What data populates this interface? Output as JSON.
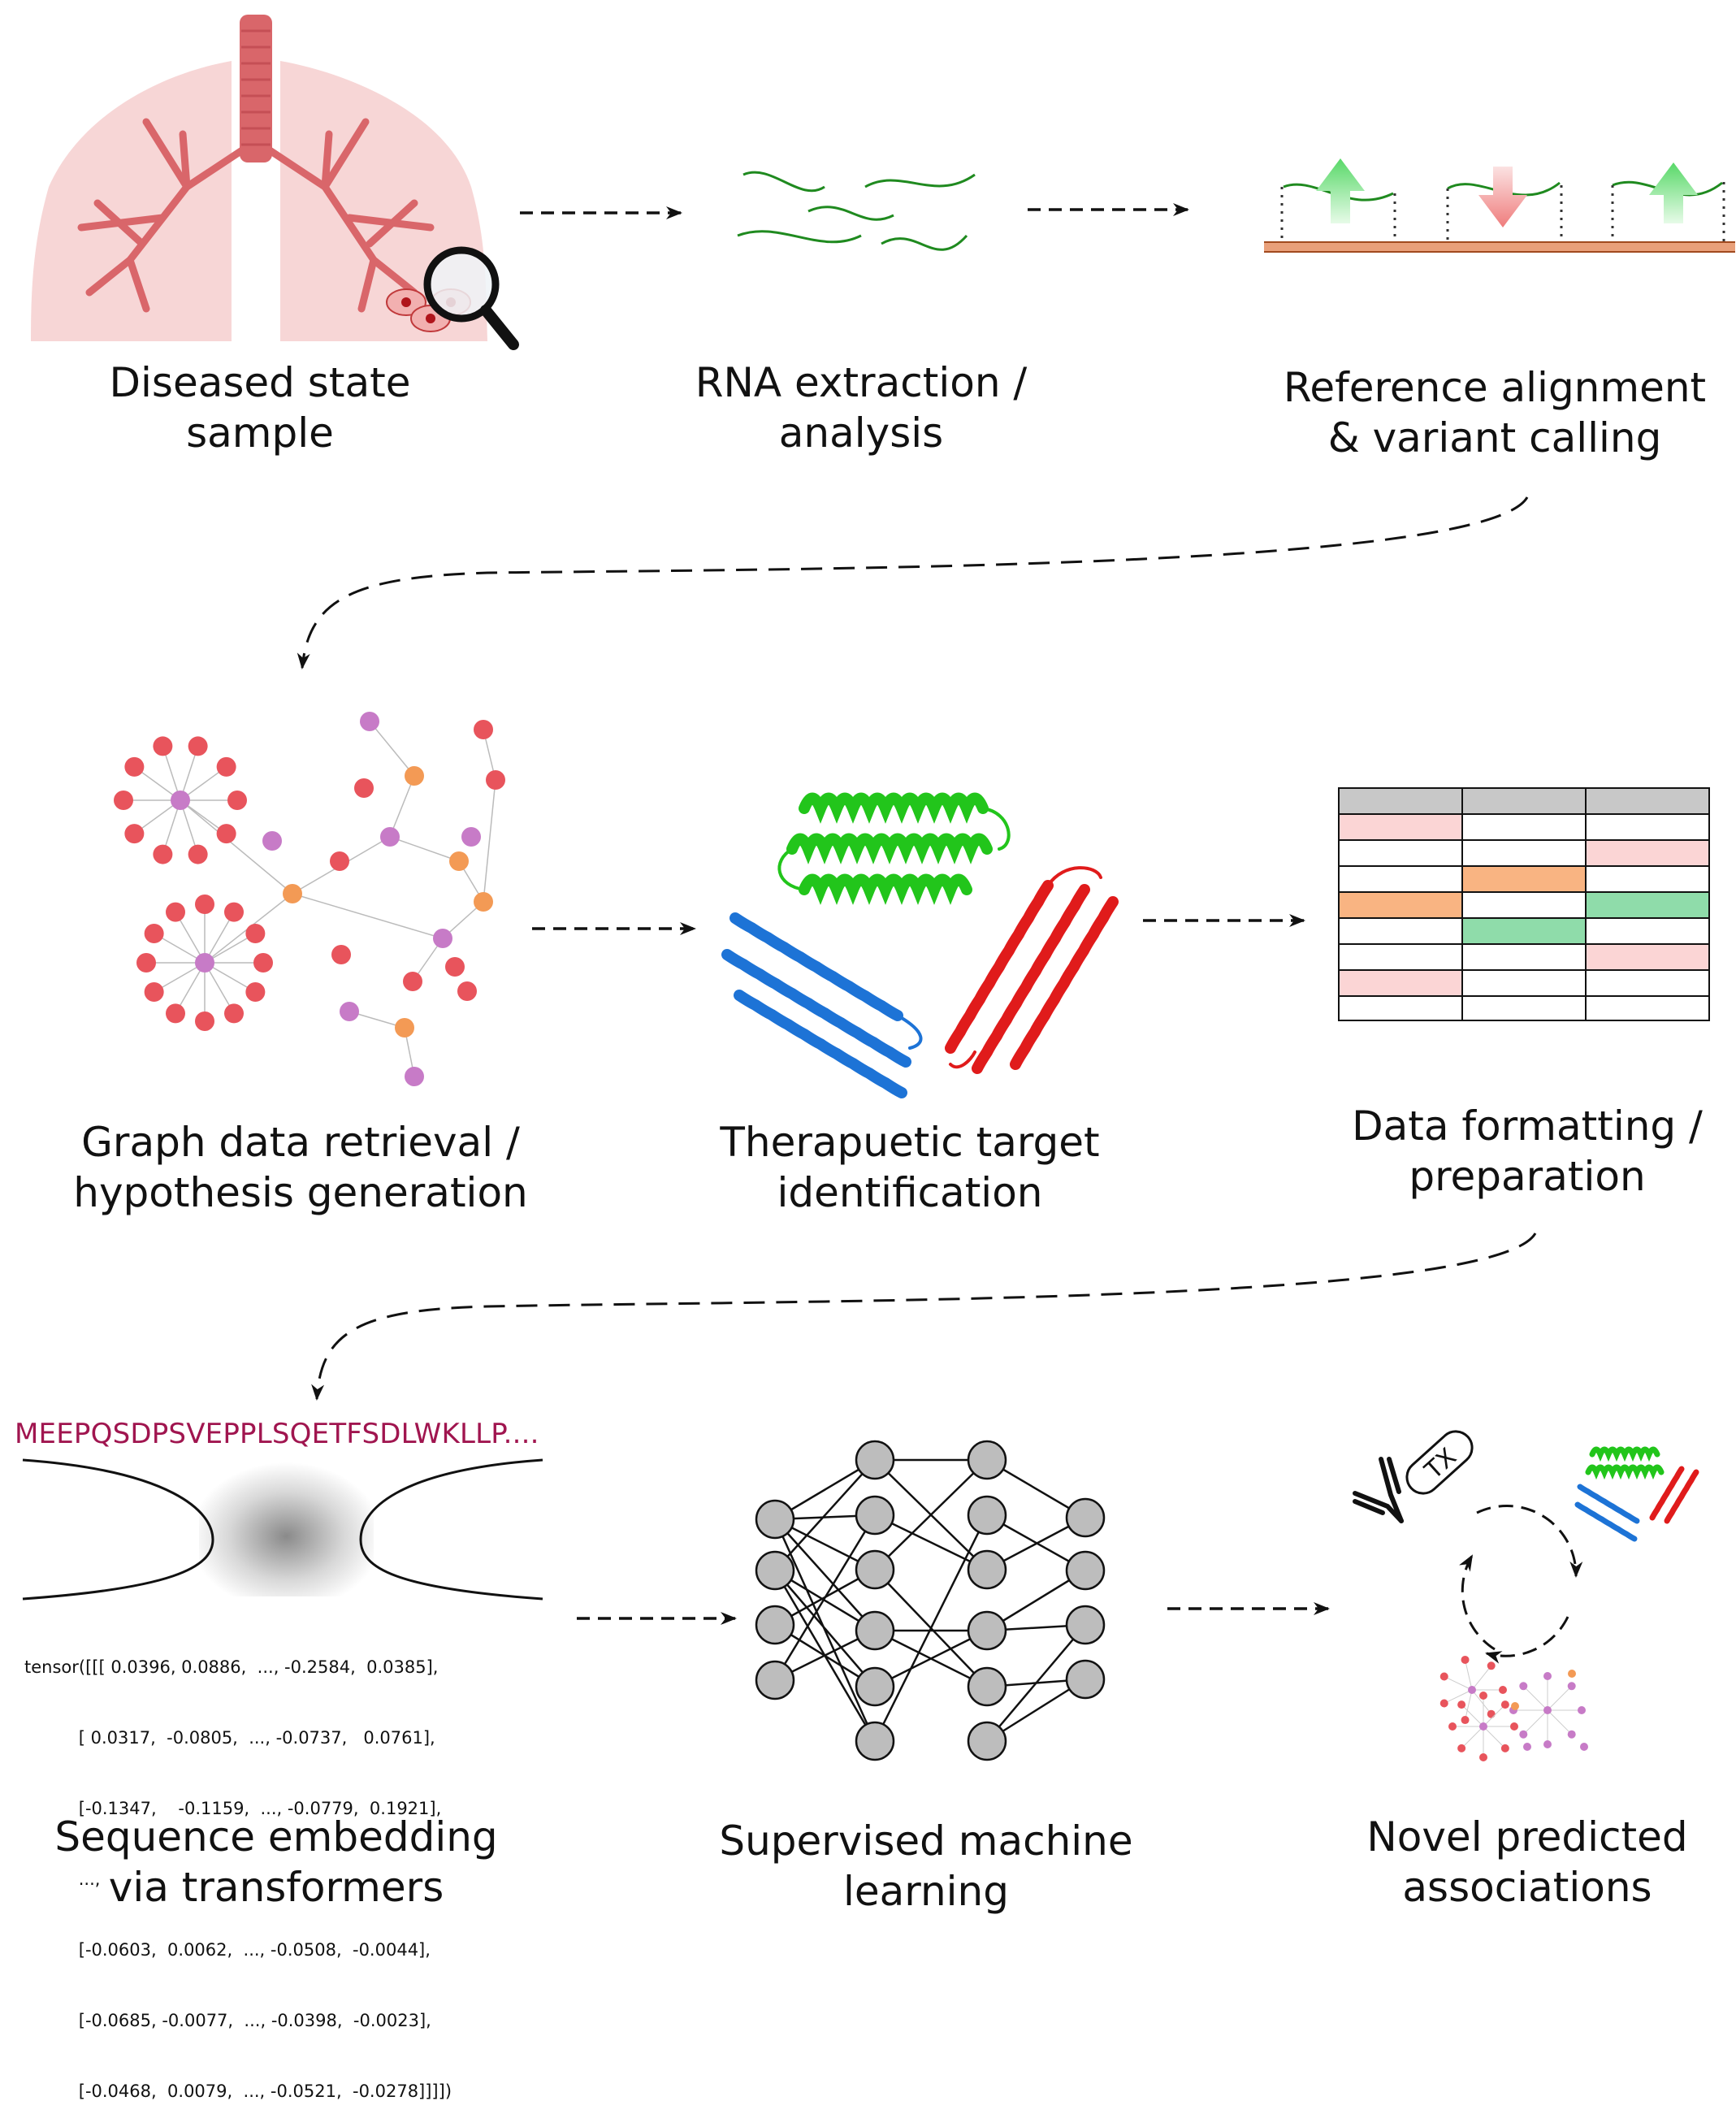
{
  "steps": {
    "s1": {
      "line1": "Diseased state",
      "line2": "sample"
    },
    "s2": {
      "line1": "RNA extraction /",
      "line2": "analysis"
    },
    "s3": {
      "line1": "Reference alignment",
      "line2": "& variant calling"
    },
    "s4": {
      "line1": "Graph data retrieval /",
      "line2": "hypothesis generation"
    },
    "s5": {
      "line1": "Therapuetic target",
      "line2": "identification"
    },
    "s6": {
      "line1": "Data formatting /",
      "line2": "preparation"
    },
    "s7": {
      "line1": "Sequence embedding",
      "line2": "via transformers"
    },
    "s8": {
      "line1": "Supervised machine",
      "line2": "learning"
    },
    "s9": {
      "line1": "Novel predicted",
      "line2": "associations"
    }
  },
  "sequence": "MEEPQSDPSVEPPLSQETFSDLWKLLP....",
  "tensor_lines": [
    "tensor([[[ 0.0396, 0.0886,  ..., -0.2584,  0.0385],",
    "          [ 0.0317,  -0.0805,  ..., -0.0737,   0.0761],",
    "          [-0.1347,    -0.1159,  ..., -0.0779,  0.1921],",
    "          ...,",
    "          [-0.0603,  0.0062,  ..., -0.0508,  -0.0044],",
    "          [-0.0685, -0.0077,  ..., -0.0398,  -0.0023],",
    "          [-0.0468,  0.0079,  ..., -0.0521,  -0.0278]]]])"
  ],
  "tx_label": "TX",
  "colors": {
    "lung": "#f7d6d6",
    "bronchi": "#d9666a",
    "rna": "#1f8a1f",
    "up_arrow": "#6fe07a",
    "down_arrow": "#f28a8a",
    "graph_red": "#e8545c",
    "graph_purple": "#c77bc7",
    "graph_orange": "#f39a55",
    "protein_green": "#22c51b",
    "protein_blue": "#1d73d6",
    "protein_red": "#e01b1b",
    "table_header": "#c8c8c8",
    "table_pink": "#fbd5d5",
    "table_orange": "#f9b482",
    "table_green": "#8fdcaa",
    "nn_node": "#bdbdbd",
    "sequence": "#a0154f"
  }
}
